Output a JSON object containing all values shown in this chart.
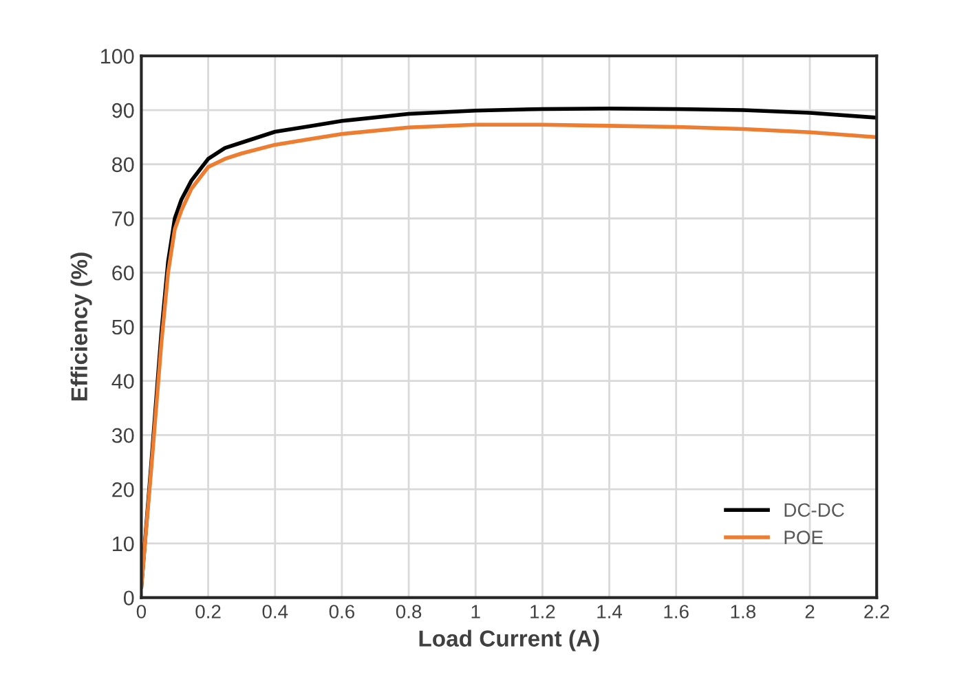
{
  "chart_data": {
    "type": "line",
    "xlabel": "Load Current (A)",
    "ylabel": "Efficiency (%)",
    "xlim": [
      0,
      2.2
    ],
    "xticks": [
      0,
      0.2,
      0.4,
      0.6,
      0.8,
      1,
      1.2,
      1.4,
      1.6,
      1.8,
      2,
      2.2
    ],
    "ylim": [
      0,
      100
    ],
    "yticks": [
      0,
      10,
      20,
      30,
      40,
      50,
      60,
      70,
      80,
      90,
      100
    ],
    "grid": true,
    "legend": "bottom right",
    "line_style": "solid",
    "marker": "none",
    "series": [
      {
        "name": "DC-DC",
        "color": "#000000",
        "x": [
          0,
          0.03,
          0.06,
          0.08,
          0.1,
          0.12,
          0.15,
          0.2,
          0.25,
          0.3,
          0.4,
          0.5,
          0.6,
          0.8,
          1.0,
          1.2,
          1.4,
          1.6,
          1.8,
          2.0,
          2.2
        ],
        "values": [
          2,
          25,
          49,
          62,
          70,
          73.5,
          77,
          81,
          83,
          84,
          86,
          87,
          88,
          89.3,
          89.9,
          90.2,
          90.3,
          90.2,
          90,
          89.5,
          88.6
        ]
      },
      {
        "name": "POE",
        "color": "#ed7d31",
        "x": [
          0,
          0.03,
          0.06,
          0.08,
          0.1,
          0.12,
          0.15,
          0.2,
          0.25,
          0.3,
          0.4,
          0.5,
          0.6,
          0.8,
          1.0,
          1.2,
          1.4,
          1.6,
          1.8,
          2.0,
          2.2
        ],
        "values": [
          2,
          24,
          47,
          60,
          68,
          71.5,
          75.5,
          79.5,
          81,
          82,
          83.6,
          84.6,
          85.6,
          86.8,
          87.3,
          87.3,
          87.1,
          86.9,
          86.5,
          85.9,
          85
        ]
      }
    ]
  }
}
